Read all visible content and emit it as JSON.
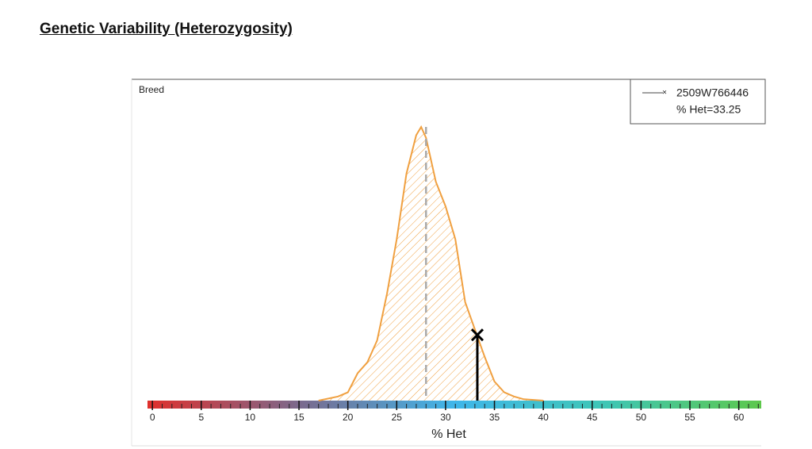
{
  "chart_data": {
    "type": "density",
    "title": "Genetic Variability (Heterozygosity)",
    "panel_label": "Breed",
    "x_label": "% Het",
    "xlim": [
      -0.5,
      62.3
    ],
    "ylim": [
      0,
      100
    ],
    "xticks": [
      0,
      5,
      10,
      15,
      20,
      25,
      30,
      35,
      40,
      45,
      50,
      55,
      60
    ],
    "xminor_ticks": [
      0,
      1,
      2,
      3,
      4,
      5,
      6,
      7,
      8,
      9,
      10,
      11,
      12,
      13,
      14,
      15,
      16,
      17,
      18,
      19,
      20,
      21,
      22,
      23,
      24,
      25,
      26,
      27,
      28,
      29,
      30,
      31,
      32,
      33,
      34,
      35,
      36,
      37,
      38,
      39,
      40,
      41,
      42,
      43,
      44,
      45,
      46,
      47,
      48,
      49,
      50,
      51,
      52,
      53,
      54,
      55,
      56,
      57,
      58,
      59,
      60,
      61,
      62
    ],
    "colorbar": [
      "#e0302c",
      "#7a6a8e",
      "#3fb6ea",
      "#3fc6b4",
      "#5ec84c"
    ],
    "series": [
      {
        "color": "#f0a040",
        "x": [
          17,
          19,
          20,
          21,
          22,
          23,
          24,
          25,
          26,
          27,
          27.5,
          28,
          29,
          30,
          31,
          32,
          33,
          34,
          35,
          36,
          37,
          38,
          40
        ],
        "values": [
          0,
          1.5,
          3,
          10,
          14,
          22,
          39,
          59,
          83,
          97,
          100,
          96,
          80,
          71,
          59,
          36,
          26,
          16,
          7,
          3,
          1.5,
          0.5,
          0
        ]
      }
    ],
    "mean": 28,
    "sample": {
      "name": "2509W766446",
      "x": 33.25,
      "y": 24,
      "label": "% Het=33.25"
    }
  }
}
